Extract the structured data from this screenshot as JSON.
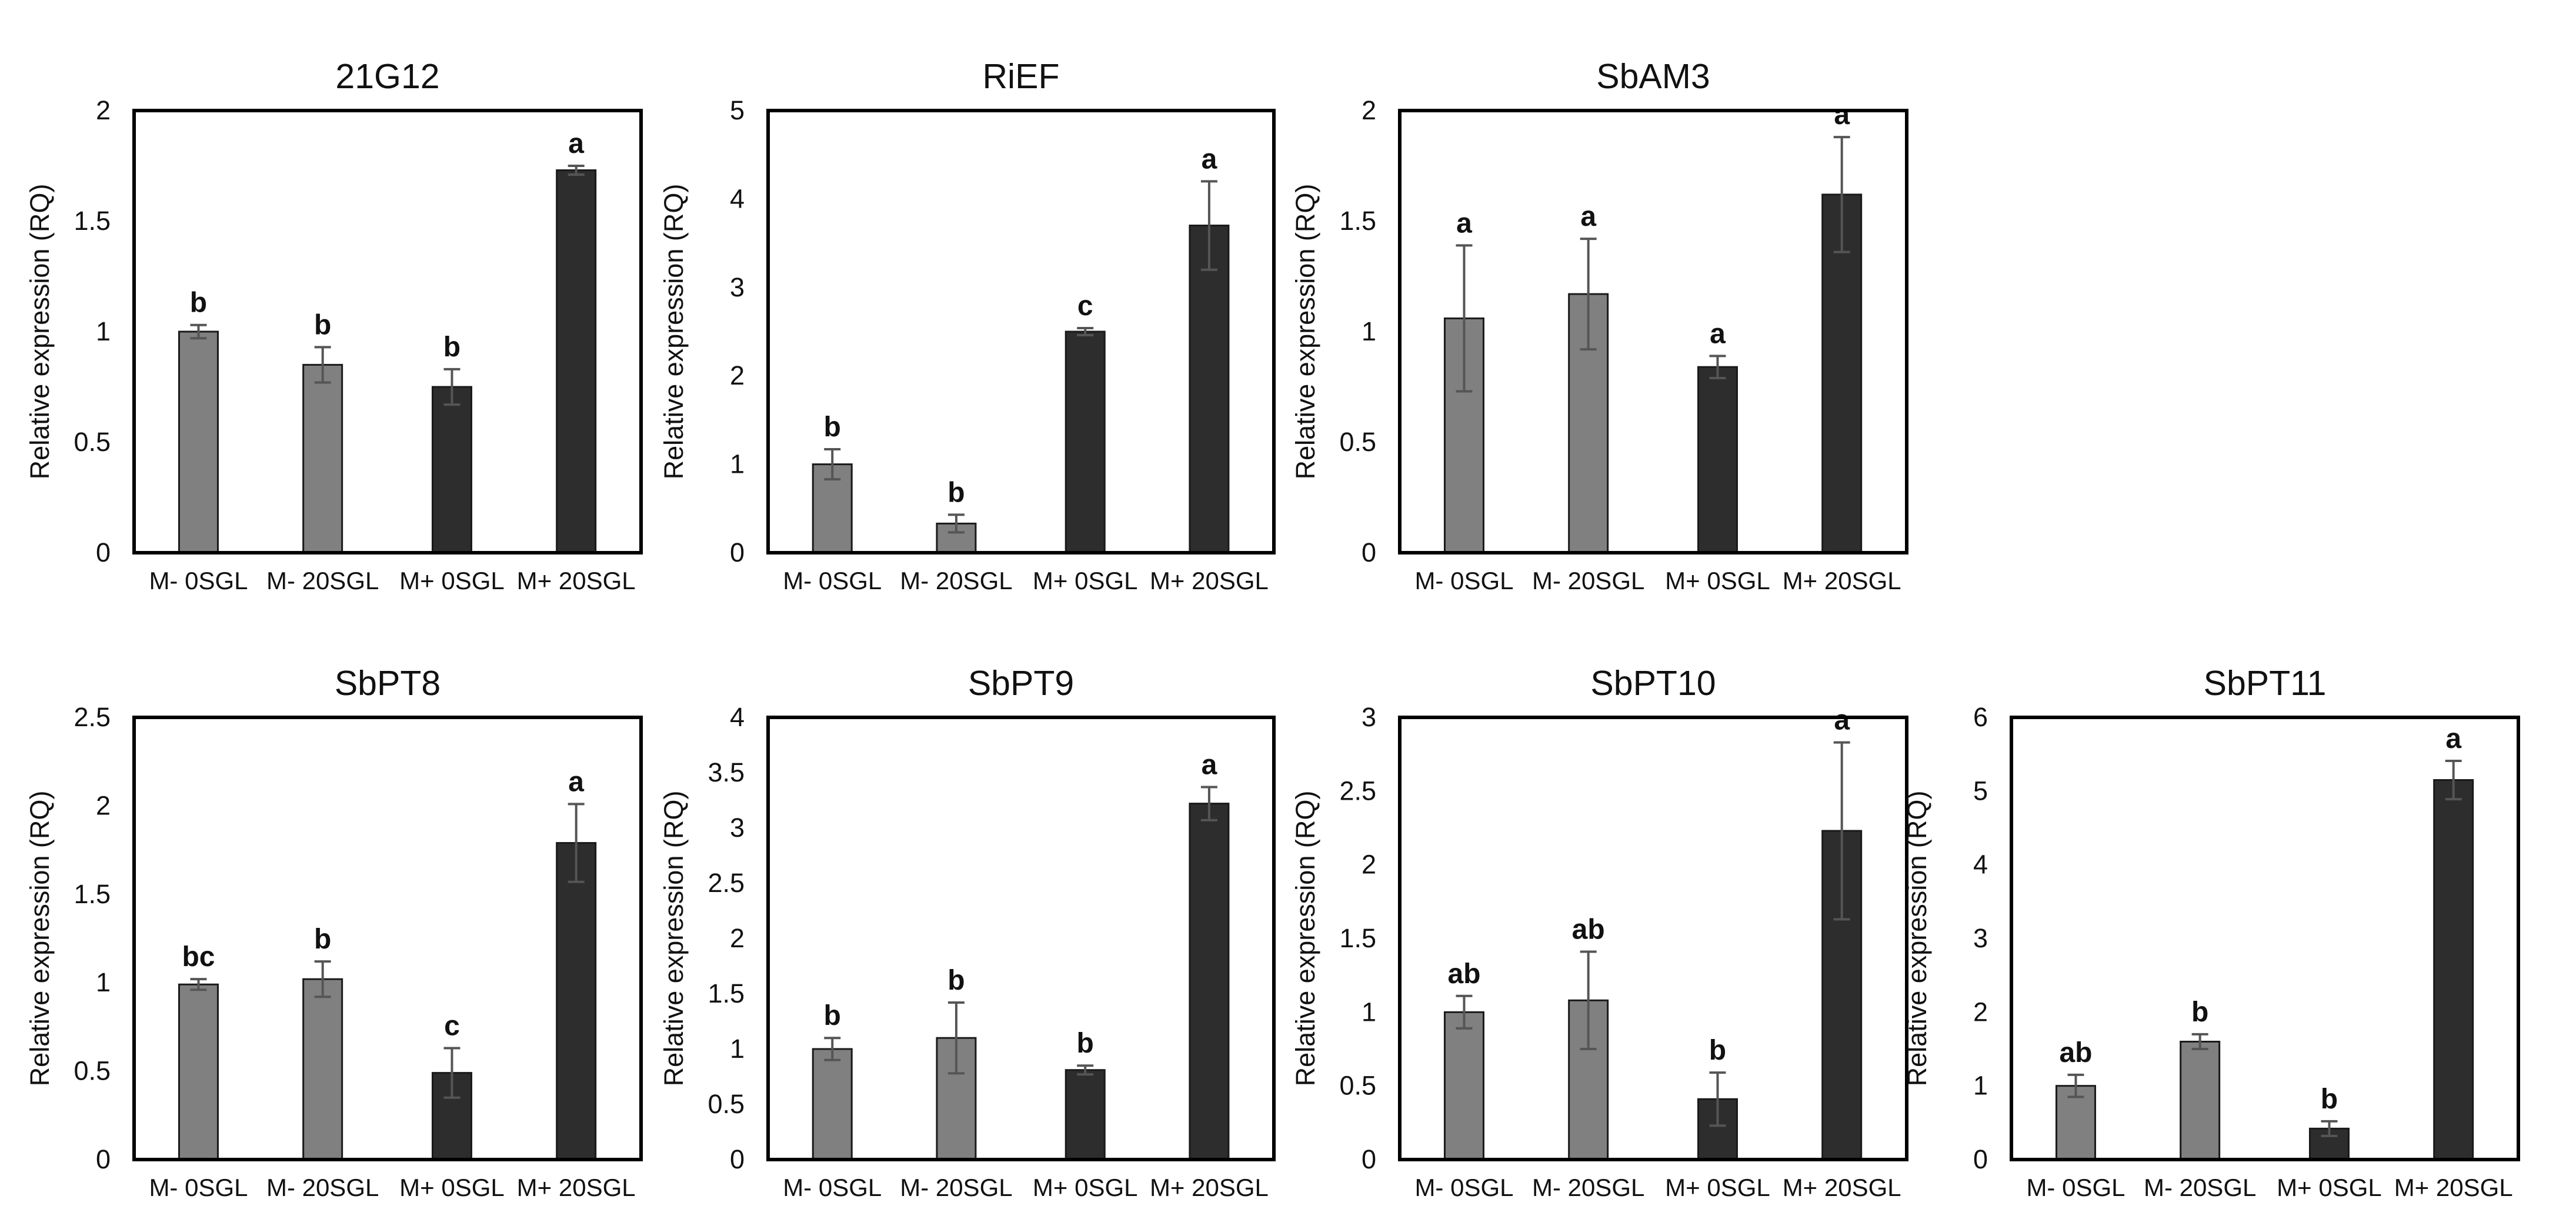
{
  "chart_data": [
    {
      "type": "bar",
      "title": "21G12",
      "ylabel": "Relative expression (RQ)",
      "categories": [
        "M- 0SGL",
        "M- 20SGL",
        "M+ 0SGL",
        "M+ 20SGL"
      ],
      "values": [
        1.0,
        0.85,
        0.75,
        1.73
      ],
      "errors": [
        0.03,
        0.08,
        0.08,
        0.02
      ],
      "significance": [
        "b",
        "b",
        "b",
        "a"
      ],
      "ylim": [
        0,
        2
      ],
      "yticks": [
        0,
        0.5,
        1,
        1.5,
        2
      ],
      "ytick_labels": [
        "0",
        "0.5",
        "1",
        "1.5",
        "2"
      ],
      "colors": [
        "#808080",
        "#808080",
        "#2d2d2d",
        "#2d2d2d"
      ]
    },
    {
      "type": "bar",
      "title": "RiEF",
      "ylabel": "Relative expression (RQ)",
      "categories": [
        "M- 0SGL",
        "M- 20SGL",
        "M+ 0SGL",
        "M+ 20SGL"
      ],
      "values": [
        1.0,
        0.33,
        2.5,
        3.7
      ],
      "errors": [
        0.17,
        0.1,
        0.04,
        0.5
      ],
      "significance": [
        "b",
        "b",
        "c",
        "a"
      ],
      "ylim": [
        0,
        5
      ],
      "yticks": [
        0,
        1,
        2,
        3,
        4,
        5
      ],
      "ytick_labels": [
        "0",
        "1",
        "2",
        "3",
        "4",
        "5"
      ],
      "colors": [
        "#808080",
        "#808080",
        "#2d2d2d",
        "#2d2d2d"
      ]
    },
    {
      "type": "bar",
      "title": "SbAM3",
      "ylabel": "Relative expression (RQ)",
      "categories": [
        "M- 0SGL",
        "M- 20SGL",
        "M+ 0SGL",
        "M+ 20SGL"
      ],
      "values": [
        1.06,
        1.17,
        0.84,
        1.62
      ],
      "errors": [
        0.33,
        0.25,
        0.05,
        0.26
      ],
      "significance": [
        "a",
        "a",
        "a",
        "a"
      ],
      "ylim": [
        0,
        2
      ],
      "yticks": [
        0,
        0.5,
        1,
        1.5,
        2
      ],
      "ytick_labels": [
        "0",
        "0.5",
        "1",
        "1.5",
        "2"
      ],
      "colors": [
        "#808080",
        "#808080",
        "#2d2d2d",
        "#2d2d2d"
      ]
    },
    {
      "type": "bar",
      "title": "SbPT8",
      "ylabel": "Relative expression (RQ)",
      "categories": [
        "M- 0SGL",
        "M- 20SGL",
        "M+ 0SGL",
        "M+ 20SGL"
      ],
      "values": [
        0.99,
        1.02,
        0.49,
        1.79
      ],
      "errors": [
        0.03,
        0.1,
        0.14,
        0.22
      ],
      "significance": [
        "bc",
        "b",
        "c",
        "a"
      ],
      "ylim": [
        0,
        2.5
      ],
      "yticks": [
        0,
        0.5,
        1,
        1.5,
        2,
        2.5
      ],
      "ytick_labels": [
        "0",
        "0.5",
        "1",
        "1.5",
        "2",
        "2.5"
      ],
      "colors": [
        "#808080",
        "#808080",
        "#2d2d2d",
        "#2d2d2d"
      ]
    },
    {
      "type": "bar",
      "title": "SbPT9",
      "ylabel": "Relative expression (RQ)",
      "categories": [
        "M- 0SGL",
        "M- 20SGL",
        "M+ 0SGL",
        "M+ 20SGL"
      ],
      "values": [
        1.0,
        1.1,
        0.81,
        3.22
      ],
      "errors": [
        0.1,
        0.32,
        0.04,
        0.15
      ],
      "significance": [
        "b",
        "b",
        "b",
        "a"
      ],
      "ylim": [
        0,
        4
      ],
      "yticks": [
        0,
        0.5,
        1,
        1.5,
        2,
        2.5,
        3,
        3.5,
        4
      ],
      "ytick_labels": [
        "0",
        "0.5",
        "1",
        "1.5",
        "2",
        "2.5",
        "3",
        "3.5",
        "4"
      ],
      "colors": [
        "#808080",
        "#808080",
        "#2d2d2d",
        "#2d2d2d"
      ]
    },
    {
      "type": "bar",
      "title": "SbPT10",
      "ylabel": "Relative expression (RQ)",
      "categories": [
        "M- 0SGL",
        "M- 20SGL",
        "M+ 0SGL",
        "M+ 20SGL"
      ],
      "values": [
        1.0,
        1.08,
        0.41,
        2.23
      ],
      "errors": [
        0.11,
        0.33,
        0.18,
        0.6
      ],
      "significance": [
        "ab",
        "ab",
        "b",
        "a"
      ],
      "ylim": [
        0,
        3
      ],
      "yticks": [
        0,
        0.5,
        1,
        1.5,
        2,
        2.5,
        3
      ],
      "ytick_labels": [
        "0",
        "0.5",
        "1",
        "1.5",
        "2",
        "2.5",
        "3"
      ],
      "colors": [
        "#808080",
        "#808080",
        "#2d2d2d",
        "#2d2d2d"
      ]
    },
    {
      "type": "bar",
      "title": "SbPT11",
      "ylabel": "Relative expression (RQ)",
      "categories": [
        "M- 0SGL",
        "M- 20SGL",
        "M+ 0SGL",
        "M+ 20SGL"
      ],
      "values": [
        1.0,
        1.6,
        0.42,
        5.15
      ],
      "errors": [
        0.15,
        0.1,
        0.1,
        0.26
      ],
      "significance": [
        "ab",
        "b",
        "b",
        "a"
      ],
      "ylim": [
        0,
        6
      ],
      "yticks": [
        0,
        1,
        2,
        3,
        4,
        5,
        6
      ],
      "ytick_labels": [
        "0",
        "1",
        "2",
        "3",
        "4",
        "5",
        "6"
      ],
      "colors": [
        "#808080",
        "#808080",
        "#2d2d2d",
        "#2d2d2d"
      ]
    }
  ]
}
